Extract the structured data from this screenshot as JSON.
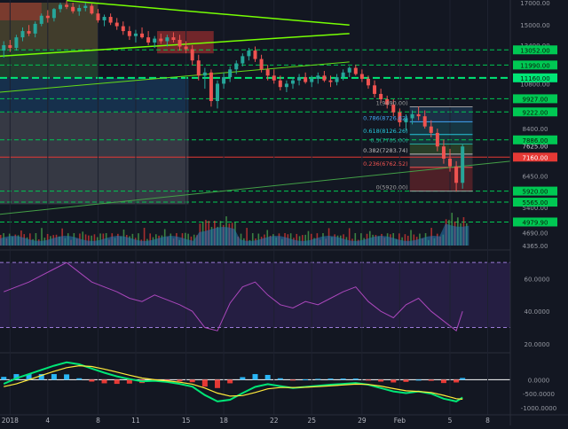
{
  "chart_data": [
    {
      "type": "candlestick",
      "title": "",
      "x_ticks": [
        {
          "day": 1,
          "label": "2018"
        },
        {
          "day": 4,
          "label": "4"
        },
        {
          "day": 8,
          "label": "8"
        },
        {
          "day": 11,
          "label": "11"
        },
        {
          "day": 15,
          "label": "15"
        },
        {
          "day": 18,
          "label": "18"
        },
        {
          "day": 22,
          "label": "22"
        },
        {
          "day": 25,
          "label": "25"
        },
        {
          "day": 29,
          "label": "29"
        },
        {
          "day": 32,
          "label": "Feb"
        },
        {
          "day": 36,
          "label": "5"
        },
        {
          "day": 39,
          "label": "8"
        }
      ],
      "x_range": [
        0.2,
        40.8
      ],
      "y_range": [
        4365,
        17000
      ],
      "y_ticks": [
        17000,
        15000,
        13400,
        10800,
        8400,
        6450,
        5400,
        4690,
        4365
      ],
      "price_lines": [
        {
          "value": 13052,
          "label": "13052.00",
          "color": "#00c853",
          "style": "dashed"
        },
        {
          "value": 11990,
          "label": "11990.00",
          "color": "#00c853",
          "style": "dashed"
        },
        {
          "value": 11160,
          "label": "11160.00",
          "color": "#00e676",
          "style": "dashed-bold"
        },
        {
          "value": 9927,
          "label": "9927.00",
          "color": "#00c853",
          "style": "dashed"
        },
        {
          "value": 9222,
          "label": "9222.00",
          "color": "#00c853",
          "style": "dashed"
        },
        {
          "value": 7886,
          "label": "7886.00",
          "color": "#00c853",
          "style": "dashed"
        },
        {
          "value": 7160,
          "label": "7160.00",
          "color": "#e53935",
          "style": "solid"
        },
        {
          "value": 5920,
          "label": "5920.00",
          "color": "#00c853",
          "style": "dashed"
        },
        {
          "value": 5565,
          "label": "5565.00",
          "color": "#00c853",
          "style": "dashed"
        },
        {
          "value": 4979,
          "label": "4979.90",
          "color": "#00c853",
          "style": "dashed"
        }
      ],
      "plain_axis_labels": [
        {
          "value": 7625,
          "label": "7625.00"
        }
      ],
      "fib_levels": [
        {
          "ratio": "1",
          "value": 9490,
          "label": "1(9490.00)",
          "color": "#9e9e9e"
        },
        {
          "ratio": "0.786",
          "value": 8726,
          "label": "0.786(8726.62)",
          "color": "#42a5f5"
        },
        {
          "ratio": "0.618",
          "value": 8126,
          "label": "0.618(8126.26)",
          "color": "#26c6da"
        },
        {
          "ratio": "0.5",
          "value": 7705,
          "label": "0.5(7705.00)",
          "color": "#26a69a"
        },
        {
          "ratio": "0.382",
          "value": 7283,
          "label": "0.382(7283.74)",
          "color": "#bdbdbd"
        },
        {
          "ratio": "0.236",
          "value": 6762,
          "label": "0.236(6762.52)",
          "color": "#ef5350"
        },
        {
          "ratio": "0",
          "value": 5920,
          "label": "0(5920.00)",
          "color": "#9e9e9e"
        }
      ],
      "candles": [
        [
          0.5,
          13000,
          13700,
          12500,
          13400
        ],
        [
          1,
          13400,
          13800,
          12900,
          13200
        ],
        [
          1.5,
          13200,
          14200,
          13000,
          14000
        ],
        [
          2,
          14000,
          14800,
          13700,
          14500
        ],
        [
          2.5,
          14500,
          15000,
          14100,
          14300
        ],
        [
          3,
          14300,
          15300,
          14000,
          15100
        ],
        [
          3.5,
          15100,
          16000,
          14900,
          15800
        ],
        [
          4,
          15800,
          16300,
          15200,
          15600
        ],
        [
          4.5,
          15600,
          16500,
          15300,
          16400
        ],
        [
          5,
          16400,
          17000,
          16100,
          16800
        ],
        [
          5.5,
          16800,
          17200,
          16400,
          16600
        ],
        [
          6,
          16600,
          17000,
          16000,
          16200
        ],
        [
          6.5,
          16200,
          16800,
          15800,
          16500
        ],
        [
          7,
          16500,
          17000,
          16200,
          16700
        ],
        [
          7.5,
          16700,
          16900,
          15900,
          16000
        ],
        [
          8,
          16000,
          16400,
          15200,
          15400
        ],
        [
          8.5,
          15400,
          15900,
          14900,
          15700
        ],
        [
          9,
          15700,
          16000,
          15000,
          15200
        ],
        [
          9.5,
          15200,
          15600,
          14600,
          14900
        ],
        [
          10,
          14900,
          15300,
          14200,
          14500
        ],
        [
          10.5,
          14500,
          14900,
          13800,
          14100
        ],
        [
          11,
          14100,
          14600,
          13600,
          14300
        ],
        [
          11.5,
          14300,
          14800,
          13900,
          14000
        ],
        [
          12,
          14000,
          14500,
          13400,
          13600
        ],
        [
          12.5,
          13600,
          14100,
          13200,
          13900
        ],
        [
          13,
          13900,
          14300,
          13500,
          13700
        ],
        [
          13.5,
          13700,
          14200,
          13300,
          14000
        ],
        [
          14,
          14000,
          14400,
          13600,
          13800
        ],
        [
          14.5,
          13800,
          14200,
          13000,
          13300
        ],
        [
          15,
          13300,
          13700,
          12800,
          13100
        ],
        [
          15.5,
          13100,
          13400,
          12000,
          12300
        ],
        [
          16,
          12300,
          12700,
          11000,
          11300
        ],
        [
          16.5,
          11300,
          11800,
          10500,
          11500
        ],
        [
          17,
          11500,
          11700,
          9500,
          9800
        ],
        [
          17.5,
          9800,
          11000,
          9400,
          10800
        ],
        [
          18,
          10800,
          11500,
          10500,
          11200
        ],
        [
          18.5,
          11200,
          11900,
          10900,
          11700
        ],
        [
          19,
          11700,
          12300,
          11400,
          12100
        ],
        [
          19.5,
          12100,
          12800,
          11900,
          12600
        ],
        [
          20,
          12600,
          13200,
          12300,
          13000
        ],
        [
          20.5,
          13000,
          13300,
          12200,
          12400
        ],
        [
          21,
          12400,
          12700,
          11500,
          11700
        ],
        [
          21.5,
          11700,
          12000,
          11000,
          11300
        ],
        [
          22,
          11300,
          11700,
          10800,
          11000
        ],
        [
          22.5,
          11000,
          11300,
          10400,
          10600
        ],
        [
          23,
          10600,
          11000,
          10300,
          10800
        ],
        [
          23.5,
          10800,
          11200,
          10500,
          11000
        ],
        [
          24,
          11000,
          11400,
          10700,
          11200
        ],
        [
          24.5,
          11200,
          11500,
          10800,
          10900
        ],
        [
          25,
          10900,
          11300,
          10600,
          11100
        ],
        [
          25.5,
          11100,
          11500,
          10800,
          11300
        ],
        [
          26,
          11300,
          11600,
          10900,
          11000
        ],
        [
          26.5,
          11000,
          11300,
          10600,
          10900
        ],
        [
          27,
          10900,
          11400,
          10700,
          11200
        ],
        [
          27.5,
          11200,
          11700,
          11000,
          11500
        ],
        [
          28,
          11500,
          11900,
          11200,
          11800
        ],
        [
          28.5,
          11800,
          12000,
          11300,
          11400
        ],
        [
          29,
          11400,
          11700,
          10900,
          11100
        ],
        [
          29.5,
          11100,
          11300,
          10500,
          10700
        ],
        [
          30,
          10700,
          11000,
          10000,
          10200
        ],
        [
          30.5,
          10200,
          10500,
          9700,
          9900
        ],
        [
          31,
          9900,
          10100,
          9400,
          9600
        ],
        [
          31.5,
          9600,
          9900,
          9000,
          9200
        ],
        [
          32,
          9200,
          9400,
          8500,
          8700
        ],
        [
          32.5,
          8700,
          9100,
          8300,
          8900
        ],
        [
          33,
          8900,
          9300,
          8600,
          9100
        ],
        [
          33.5,
          9100,
          9500,
          8800,
          9000
        ],
        [
          34,
          9000,
          9300,
          8400,
          8500
        ],
        [
          34.5,
          8500,
          8800,
          8000,
          8200
        ],
        [
          35,
          8200,
          8400,
          7400,
          7600
        ],
        [
          35.5,
          7600,
          7900,
          6900,
          7100
        ],
        [
          36,
          7100,
          7500,
          6600,
          6800
        ],
        [
          36.5,
          6800,
          7000,
          5900,
          6200
        ],
        [
          37,
          6200,
          7700,
          6000,
          7600
        ]
      ]
    },
    {
      "type": "line",
      "name": "RSI",
      "y_range": [
        15,
        75
      ],
      "y_ticks": [
        60,
        40,
        20
      ],
      "y_tick_labels": [
        "60.0000",
        "40.0000",
        "20.0000"
      ],
      "bands": [
        70,
        30
      ],
      "x": [
        0.5,
        1.5,
        2.5,
        3.5,
        4.5,
        5.5,
        6.5,
        7.5,
        8.5,
        9.5,
        10.5,
        11.5,
        12.5,
        13.5,
        14.5,
        15.5,
        16.5,
        17.5,
        18.5,
        19.5,
        20.5,
        21.5,
        22.5,
        23.5,
        24.5,
        25.5,
        26.5,
        27.5,
        28.5,
        29.5,
        30.5,
        31.5,
        32.5,
        33.5,
        34.5,
        35.5,
        36.5,
        37
      ],
      "values": [
        52,
        55,
        58,
        62,
        66,
        70,
        64,
        58,
        55,
        52,
        48,
        46,
        50,
        47,
        44,
        40,
        30,
        28,
        45,
        55,
        58,
        50,
        44,
        42,
        46,
        44,
        48,
        52,
        55,
        46,
        40,
        36,
        44,
        48,
        40,
        34,
        28,
        40
      ]
    },
    {
      "type": "macd",
      "name": "MACD",
      "y_range": [
        -1100,
        900
      ],
      "y_ticks": [
        0,
        -500,
        -1000
      ],
      "y_tick_labels": [
        "0.0000",
        "-500.0000",
        "-1000.0000"
      ],
      "x": [
        0.5,
        1.5,
        2.5,
        3.5,
        4.5,
        5.5,
        6.5,
        7.5,
        8.5,
        9.5,
        10.5,
        11.5,
        12.5,
        13.5,
        14.5,
        15.5,
        16.5,
        17.5,
        18.5,
        19.5,
        20.5,
        21.5,
        22.5,
        23.5,
        24.5,
        25.5,
        26.5,
        27.5,
        28.5,
        29.5,
        30.5,
        31.5,
        32.5,
        33.5,
        34.5,
        35.5,
        36.5,
        37
      ],
      "macd": [
        -150,
        50,
        200,
        350,
        500,
        620,
        550,
        400,
        250,
        120,
        20,
        -60,
        -40,
        -80,
        -150,
        -250,
        -550,
        -780,
        -720,
        -480,
        -260,
        -160,
        -230,
        -300,
        -260,
        -220,
        -180,
        -150,
        -120,
        -180,
        -300,
        -420,
        -480,
        -420,
        -500,
        -680,
        -780,
        -640
      ],
      "signal": [
        -250,
        -150,
        0,
        150,
        300,
        430,
        500,
        470,
        380,
        270,
        160,
        60,
        0,
        -40,
        -90,
        -160,
        -300,
        -480,
        -590,
        -570,
        -460,
        -330,
        -280,
        -280,
        -270,
        -250,
        -220,
        -190,
        -160,
        -170,
        -230,
        -320,
        -400,
        -420,
        -460,
        -560,
        -680,
        -700
      ]
    }
  ]
}
